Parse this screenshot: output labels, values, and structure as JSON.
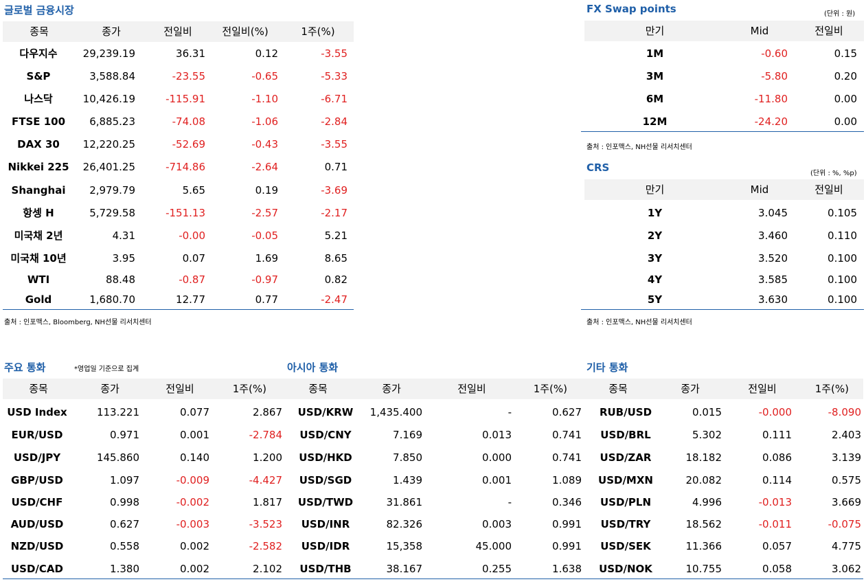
{
  "global": {
    "title": "글로벌 금융시장",
    "headers": [
      "종목",
      "종가",
      "전일비",
      "전일비(%)",
      "1주(%)"
    ],
    "rows": [
      [
        "다우지수",
        "29,239.19",
        "36.31",
        "0.12",
        "-3.55"
      ],
      [
        "S&P",
        "3,588.84",
        "-23.55",
        "-0.65",
        "-5.33"
      ],
      [
        "나스닥",
        "10,426.19",
        "-115.91",
        "-1.10",
        "-6.71"
      ],
      [
        "FTSE 100",
        "6,885.23",
        "-74.08",
        "-1.06",
        "-2.84"
      ],
      [
        "DAX 30",
        "12,220.25",
        "-52.69",
        "-0.43",
        "-3.55"
      ],
      [
        "Nikkei 225",
        "26,401.25",
        "-714.86",
        "-2.64",
        "0.71"
      ],
      [
        "Shanghai",
        "2,979.79",
        "5.65",
        "0.19",
        "-3.69"
      ],
      [
        "항셍 H",
        "5,729.58",
        "-151.13",
        "-2.57",
        "-2.17"
      ],
      [
        "미국채 2년",
        "4.31",
        "-0.00",
        "-0.05",
        "5.21"
      ],
      [
        "미국채 10년",
        "3.95",
        "0.07",
        "1.69",
        "8.65"
      ],
      [
        "WTI",
        "88.48",
        "-0.87",
        "-0.97",
        "0.82"
      ],
      [
        "Gold",
        "1,680.70",
        "12.77",
        "0.77",
        "-2.47"
      ]
    ],
    "source": "출처 : 인포맥스, Bloomberg, NH선물 리서치센터"
  },
  "fxswap": {
    "title": "FX Swap points",
    "unit": "(단위 : 원)",
    "headers": [
      "만기",
      "Mid",
      "전일비"
    ],
    "rows": [
      [
        "1M",
        "-0.60",
        "0.15"
      ],
      [
        "3M",
        "-5.80",
        "0.20"
      ],
      [
        "6M",
        "-11.80",
        "0.00"
      ],
      [
        "12M",
        "-24.20",
        "0.00"
      ]
    ],
    "source": "출처 : 인포맥스, NH선물 리서치센터"
  },
  "crs": {
    "title": "CRS",
    "unit": "(단위 : %, %p)",
    "headers": [
      "만기",
      "Mid",
      "전일비"
    ],
    "rows": [
      [
        "1Y",
        "3.045",
        "0.105"
      ],
      [
        "2Y",
        "3.460",
        "0.110"
      ],
      [
        "3Y",
        "3.520",
        "0.100"
      ],
      [
        "4Y",
        "3.585",
        "0.100"
      ],
      [
        "5Y",
        "3.630",
        "0.100"
      ]
    ],
    "source": "출처 : 인포맥스, NH선물 리서치센터"
  },
  "major": {
    "title": "주요 통화",
    "note": "*영업일 기준으로 집계",
    "headers": [
      "종목",
      "종가",
      "전일비",
      "1주(%)"
    ],
    "rows": [
      [
        "USD Index",
        "113.221",
        "0.077",
        "2.867"
      ],
      [
        "EUR/USD",
        "0.971",
        "0.001",
        "-2.784"
      ],
      [
        "USD/JPY",
        "145.860",
        "0.140",
        "1.200"
      ],
      [
        "GBP/USD",
        "1.097",
        "-0.009",
        "-4.427"
      ],
      [
        "USD/CHF",
        "0.998",
        "-0.002",
        "1.817"
      ],
      [
        "AUD/USD",
        "0.627",
        "-0.003",
        "-3.523"
      ],
      [
        "NZD/USD",
        "0.558",
        "0.002",
        "-2.582"
      ],
      [
        "USD/CAD",
        "1.380",
        "0.002",
        "2.102"
      ]
    ]
  },
  "asia": {
    "title": "아시아 통화",
    "headers": [
      "종목",
      "종가",
      "전일비",
      "1주(%)"
    ],
    "rows": [
      [
        "USD/KRW",
        "1,435.400",
        "-",
        "0.627"
      ],
      [
        "USD/CNY",
        "7.169",
        "0.013",
        "0.741"
      ],
      [
        "USD/HKD",
        "7.850",
        "0.000",
        "0.741"
      ],
      [
        "USD/SGD",
        "1.439",
        "0.001",
        "1.089"
      ],
      [
        "USD/TWD",
        "31.861",
        "-",
        "0.346"
      ],
      [
        "USD/INR",
        "82.326",
        "0.003",
        "0.991"
      ],
      [
        "USD/IDR",
        "15,358",
        "45.000",
        "0.991"
      ],
      [
        "USD/THB",
        "38.167",
        "0.255",
        "1.638"
      ]
    ]
  },
  "other": {
    "title": "기타 통화",
    "headers": [
      "종목",
      "종가",
      "전일비",
      "1주(%)"
    ],
    "rows": [
      [
        "RUB/USD",
        "0.015",
        "-0.000",
        "-8.090"
      ],
      [
        "USD/BRL",
        "5.302",
        "0.111",
        "2.403"
      ],
      [
        "USD/ZAR",
        "18.182",
        "0.086",
        "3.139"
      ],
      [
        "USD/MXN",
        "20.082",
        "0.114",
        "0.575"
      ],
      [
        "USD/PLN",
        "4.996",
        "-0.013",
        "3.669"
      ],
      [
        "USD/TRY",
        "18.562",
        "-0.011",
        "-0.075"
      ],
      [
        "USD/SEK",
        "11.366",
        "0.057",
        "4.775"
      ],
      [
        "USD/NOK",
        "10.755",
        "0.058",
        "3.062"
      ]
    ]
  },
  "colors": {
    "title": "#1f5fa8",
    "negative": "#e02020",
    "header_bg": "#f2f2f2"
  }
}
